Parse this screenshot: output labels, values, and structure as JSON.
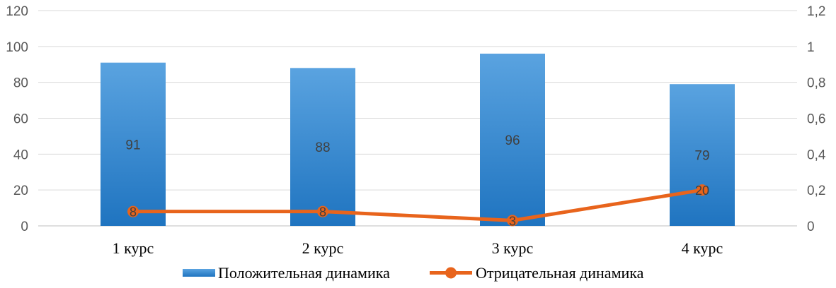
{
  "chart_data": {
    "type": "bar",
    "categories": [
      "1 курс",
      "2 курс",
      "3 курс",
      "4 курс"
    ],
    "series": [
      {
        "name": "Положительная динамика",
        "type": "bar",
        "axis": "left",
        "values": [
          91,
          88,
          96,
          79
        ],
        "color": "#2f86cf"
      },
      {
        "name": "Отрицательная динамика",
        "type": "line",
        "axis": "left",
        "values": [
          8,
          8,
          3,
          20
        ],
        "color": "#e8641c"
      }
    ],
    "y_left": {
      "ylim": [
        0,
        120
      ],
      "ticks": [
        "0",
        "20",
        "40",
        "60",
        "80",
        "100",
        "120"
      ]
    },
    "y_right": {
      "ylim": [
        0,
        1.2
      ],
      "ticks": [
        "0",
        "0,2",
        "0,4",
        "0,6",
        "0,8",
        "1",
        "1,2"
      ]
    },
    "grid": true,
    "legend": "bottom-center"
  }
}
